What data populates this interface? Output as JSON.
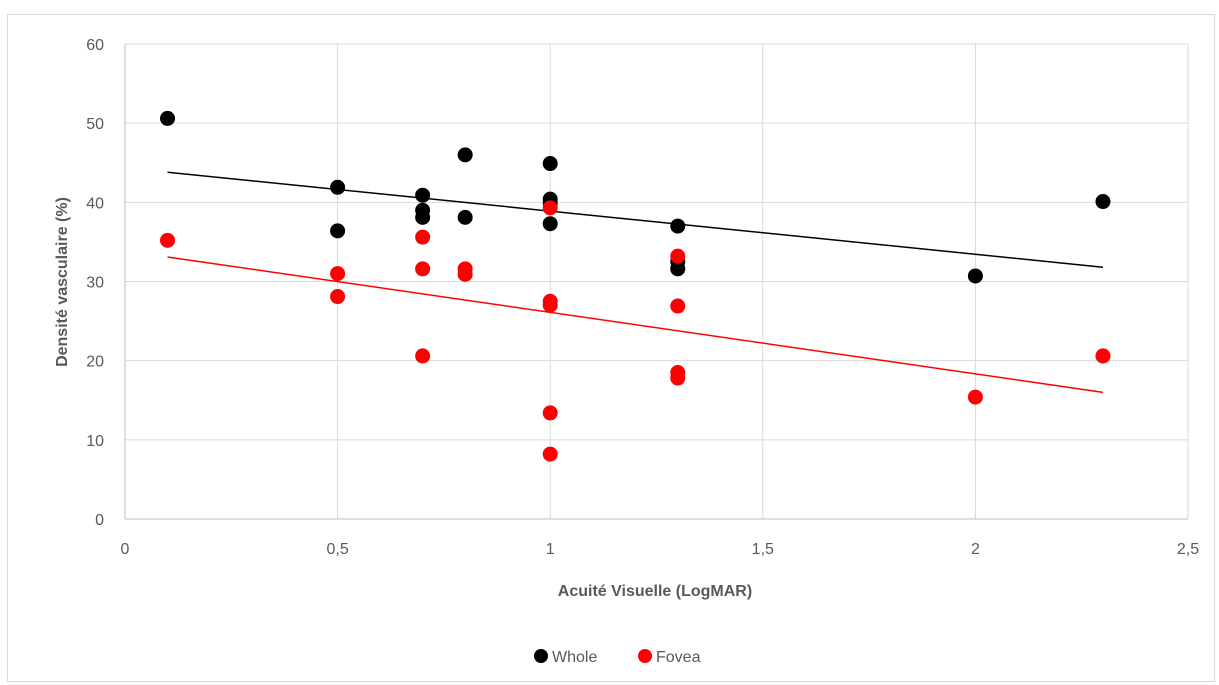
{
  "chart_data": {
    "type": "scatter",
    "title": "",
    "xlabel": "Acuité Visuelle (LogMAR)",
    "ylabel": "Densité vasculaire (%)",
    "xlim": [
      0,
      2.5
    ],
    "ylim": [
      0,
      60
    ],
    "x_ticks": [
      "0",
      "0,5",
      "1",
      "1,5",
      "2",
      "2,5"
    ],
    "y_ticks": [
      "0",
      "10",
      "20",
      "30",
      "40",
      "50",
      "60"
    ],
    "grid": true,
    "legend_position": "bottom",
    "series": [
      {
        "name": "Whole",
        "color": "#000000",
        "points": [
          [
            0.1,
            50.6
          ],
          [
            0.5,
            41.9
          ],
          [
            0.5,
            36.4
          ],
          [
            0.7,
            40.9
          ],
          [
            0.7,
            39.0
          ],
          [
            0.7,
            38.1
          ],
          [
            0.8,
            46.0
          ],
          [
            0.8,
            38.1
          ],
          [
            1.0,
            44.9
          ],
          [
            1.0,
            40.4
          ],
          [
            1.0,
            39.9
          ],
          [
            1.0,
            37.3
          ],
          [
            1.3,
            37.0
          ],
          [
            1.3,
            32.5
          ],
          [
            1.3,
            31.6
          ],
          [
            2.0,
            30.7
          ],
          [
            2.3,
            40.1
          ]
        ],
        "trendline": {
          "x": [
            0.1,
            2.3
          ],
          "y": [
            43.8,
            31.8
          ]
        }
      },
      {
        "name": "Fovea",
        "color": "#ff0000",
        "points": [
          [
            0.1,
            35.2
          ],
          [
            0.5,
            31.0
          ],
          [
            0.5,
            28.1
          ],
          [
            0.7,
            35.6
          ],
          [
            0.7,
            31.6
          ],
          [
            0.7,
            20.6
          ],
          [
            0.8,
            31.6
          ],
          [
            0.8,
            30.9
          ],
          [
            1.0,
            39.3
          ],
          [
            1.0,
            27.5
          ],
          [
            1.0,
            27.0
          ],
          [
            1.0,
            13.4
          ],
          [
            1.0,
            8.2
          ],
          [
            1.3,
            33.2
          ],
          [
            1.3,
            26.9
          ],
          [
            1.3,
            18.5
          ],
          [
            1.3,
            17.8
          ],
          [
            2.0,
            15.4
          ],
          [
            2.3,
            20.6
          ]
        ],
        "trendline": {
          "x": [
            0.1,
            2.3
          ],
          "y": [
            33.1,
            16.0
          ]
        }
      }
    ]
  }
}
